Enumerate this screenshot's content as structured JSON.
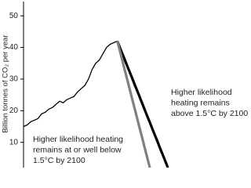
{
  "chart_data": {
    "type": "line",
    "ylabel": "Billion tonnes of CO₂ per year",
    "categories": [
      null,
      null,
      null,
      null,
      null,
      null,
      null,
      null,
      null,
      null,
      null,
      null,
      null,
      null,
      null,
      null,
      null,
      null,
      null,
      null,
      null,
      null,
      null,
      null,
      null,
      null,
      null,
      null,
      null,
      null,
      null,
      null,
      null,
      null,
      null,
      null,
      null,
      null,
      null,
      null,
      null
    ],
    "series": [
      {
        "color": "#000000",
        "linewidth": 1.3,
        "values": [
          15,
          15.5,
          16.5,
          17,
          17.5,
          19,
          19.5,
          20.5,
          21,
          22,
          23,
          22.5,
          23.5,
          24,
          24.5,
          26,
          27,
          28,
          30,
          33,
          35,
          36,
          38,
          40,
          41,
          41.5,
          42,
          null,
          null,
          null,
          null,
          null,
          null,
          null,
          null,
          null,
          null,
          null,
          null,
          null,
          null
        ]
      },
      {
        "color": "#000000",
        "linewidth": 3.2,
        "values": [
          null,
          null,
          null,
          null,
          null,
          null,
          null,
          null,
          null,
          null,
          null,
          null,
          null,
          null,
          null,
          null,
          null,
          null,
          null,
          null,
          null,
          null,
          null,
          null,
          null,
          null,
          42,
          39.1,
          36.3,
          33.4,
          30.6,
          27.7,
          24.9,
          22,
          19.1,
          16.3,
          13.4,
          10.6,
          7.7,
          4.9,
          2
        ]
      },
      {
        "color": "#808080",
        "linewidth": 3.2,
        "values": [
          null,
          null,
          null,
          null,
          null,
          null,
          null,
          null,
          null,
          null,
          null,
          null,
          null,
          null,
          null,
          null,
          null,
          null,
          null,
          null,
          null,
          null,
          null,
          null,
          null,
          null,
          42,
          37.6,
          33.1,
          28.7,
          24.2,
          19.8,
          15.3,
          10.9,
          6.4,
          2,
          null,
          null,
          null,
          null,
          null
        ]
      }
    ],
    "ylim": [
      2,
      55
    ],
    "yticks": [
      10,
      20,
      30,
      40,
      50
    ],
    "annotations": [
      {
        "lines": [
          "Higher likelihood",
          "heating remains",
          "above  1.5°C by 2100"
        ]
      },
      {
        "lines": [
          "Higher likelihood heating",
          "remains at or well below",
          "1.5°C by 2100"
        ]
      }
    ]
  }
}
